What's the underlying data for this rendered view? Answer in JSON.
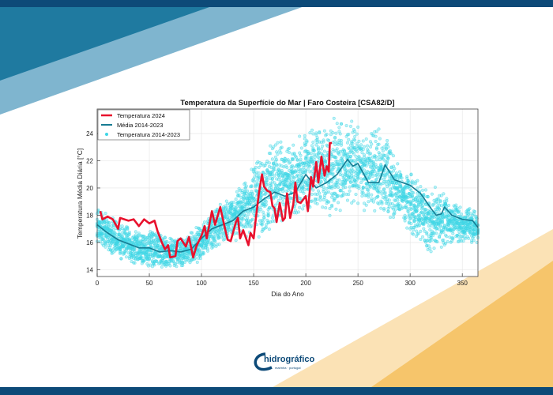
{
  "colors": {
    "frame": "#0d4a78",
    "accent_dark": "#1f7aa0",
    "accent_light": "#7fb5cf",
    "orange": "#f6c56b",
    "orange_light": "#fbe2b5"
  },
  "logo": {
    "text": "hidrográfico",
    "subtext": "marinha · portugal"
  },
  "chart_data": {
    "type": "line",
    "title": "Temperatura da Superfície do Mar | Faro Costeira [CSA82/D]",
    "xlabel": "Dia do Ano",
    "ylabel": "Temperatura Média Diária [°C]",
    "xlim": [
      0,
      365
    ],
    "ylim": [
      13.5,
      25.8
    ],
    "xticks": [
      0,
      50,
      100,
      150,
      200,
      250,
      300,
      350
    ],
    "yticks": [
      14,
      16,
      18,
      20,
      22,
      24
    ],
    "grid": true,
    "legend_position": "top-left",
    "series": [
      {
        "name": "Temperatura 2024",
        "kind": "line",
        "color": "#e8112d",
        "x": [
          3,
          5,
          10,
          15,
          20,
          22,
          30,
          35,
          40,
          45,
          50,
          55,
          58,
          62,
          65,
          68,
          70,
          75,
          77,
          80,
          85,
          88,
          92,
          95,
          100,
          103,
          105,
          110,
          113,
          118,
          122,
          125,
          128,
          133,
          135,
          137,
          140,
          145,
          147,
          150,
          152,
          155,
          158,
          160,
          163,
          166,
          168,
          170,
          172,
          175,
          178,
          180,
          182,
          185,
          188,
          190,
          192,
          195,
          198,
          200,
          202,
          205,
          207,
          210,
          212,
          215,
          218,
          220,
          222,
          223,
          225
        ],
        "y": [
          18.3,
          17.7,
          17.9,
          17.7,
          17.0,
          17.8,
          17.6,
          17.7,
          17.2,
          17.7,
          17.4,
          17.6,
          16.8,
          16.0,
          15.5,
          15.8,
          14.9,
          15.0,
          16.1,
          16.3,
          15.7,
          16.4,
          14.9,
          15.7,
          16.5,
          17.2,
          16.3,
          18.3,
          17.3,
          18.6,
          17.2,
          16.2,
          16.1,
          17.5,
          17.8,
          16.3,
          16.9,
          15.8,
          16.7,
          16.3,
          17.7,
          19.6,
          21.0,
          20.1,
          19.8,
          19.7,
          18.7,
          18.5,
          17.5,
          18.9,
          17.6,
          17.8,
          19.6,
          17.8,
          18.8,
          20.4,
          19.0,
          18.9,
          19.2,
          19.4,
          18.3,
          20.8,
          20.1,
          21.9,
          20.4,
          22.3,
          20.9,
          21.6,
          21.2,
          23.3,
          23.3
        ]
      },
      {
        "name": "Média 2014-2023",
        "kind": "line",
        "color": "#167c93",
        "x": [
          0,
          10,
          20,
          30,
          40,
          50,
          60,
          70,
          80,
          90,
          100,
          110,
          120,
          130,
          140,
          150,
          160,
          170,
          180,
          190,
          200,
          210,
          220,
          230,
          240,
          245,
          250,
          260,
          270,
          276,
          285,
          300,
          310,
          320,
          325,
          330,
          333,
          340,
          350,
          360,
          365
        ],
        "y": [
          17.3,
          16.7,
          16.2,
          15.9,
          15.6,
          15.6,
          15.3,
          15.4,
          15.3,
          15.5,
          16.3,
          17.0,
          17.3,
          17.6,
          18.3,
          18.6,
          19.2,
          19.7,
          19.4,
          19.7,
          21.0,
          20.0,
          20.4,
          21.0,
          22.1,
          21.6,
          21.8,
          20.4,
          20.4,
          21.7,
          20.6,
          20.2,
          19.6,
          18.5,
          18.0,
          18.1,
          18.6,
          18.0,
          17.7,
          17.6,
          17.1
        ]
      },
      {
        "name": "Temperatura 2014-2023",
        "kind": "scatter",
        "color": "#3fd6e6",
        "envelope_x": [
          0,
          10,
          20,
          30,
          40,
          50,
          60,
          70,
          80,
          90,
          100,
          110,
          120,
          130,
          140,
          150,
          160,
          170,
          180,
          190,
          200,
          210,
          220,
          230,
          240,
          250,
          260,
          270,
          280,
          290,
          300,
          310,
          320,
          330,
          340,
          350,
          360,
          365
        ],
        "envelope_low": [
          16.0,
          15.2,
          14.8,
          14.3,
          14.1,
          14.0,
          14.0,
          14.1,
          14.2,
          14.1,
          14.7,
          15.3,
          15.8,
          16.0,
          16.3,
          16.5,
          16.0,
          16.7,
          17.2,
          17.7,
          18.0,
          18.2,
          17.3,
          17.8,
          18.2,
          18.5,
          18.0,
          18.0,
          17.5,
          17.6,
          16.5,
          16.0,
          14.7,
          15.5,
          16.0,
          16.0,
          15.9,
          15.9
        ],
        "envelope_high": [
          18.5,
          18.2,
          17.6,
          17.3,
          17.1,
          16.9,
          16.8,
          16.5,
          16.4,
          16.8,
          17.5,
          18.5,
          19.0,
          19.8,
          20.5,
          22.0,
          22.5,
          24.1,
          23.5,
          23.5,
          24.8,
          24.8,
          25.0,
          25.3,
          25.0,
          25.1,
          24.0,
          24.5,
          23.5,
          22.0,
          21.5,
          20.5,
          20.3,
          20.0,
          19.0,
          18.8,
          18.5,
          18.3
        ]
      }
    ]
  }
}
